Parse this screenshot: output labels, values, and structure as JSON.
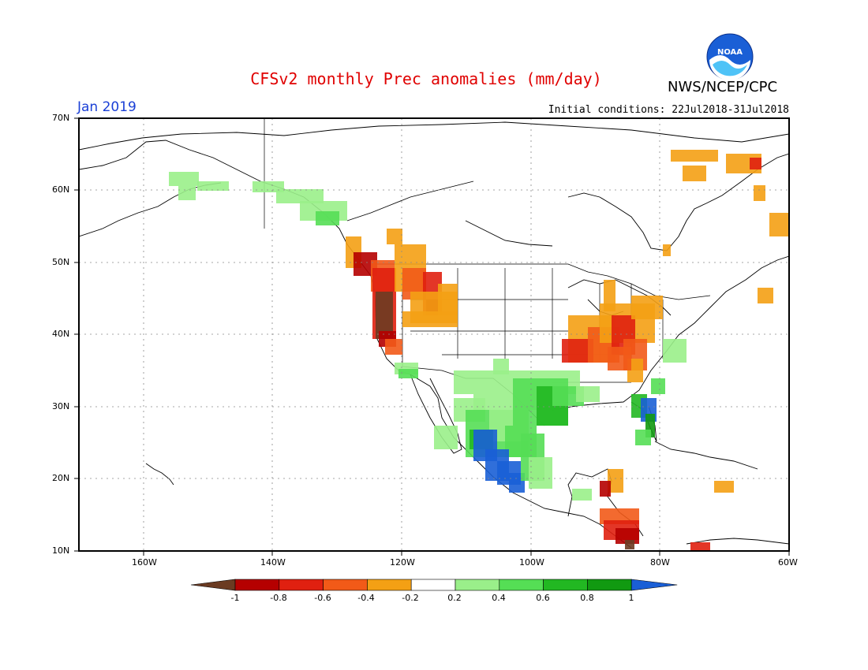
{
  "header": {
    "title": "CFSv2 monthly Prec anomalies (mm/day)",
    "month": "Jan 2019",
    "initial_conditions": "Initial conditions: 22Jul2018-31Jul2018",
    "org": "NWS/NCEP/CPC",
    "logo_text": "NOAA"
  },
  "map": {
    "extent": {
      "lon": [
        -170,
        -60
      ],
      "lat": [
        10,
        70
      ]
    },
    "lat_labels": [
      "70N",
      "60N",
      "50N",
      "40N",
      "30N",
      "20N",
      "10N"
    ],
    "lon_labels": [
      "160W",
      "140W",
      "120W",
      "100W",
      "80W",
      "60W"
    ]
  },
  "colorbar": {
    "labels": [
      "-1",
      "-0.8",
      "-0.6",
      "-0.4",
      "-0.2",
      "0.2",
      "0.4",
      "0.6",
      "0.8",
      "1"
    ],
    "colors": [
      "#6b3b22",
      "#b50000",
      "#e02010",
      "#f25a18",
      "#f4a014",
      "#ffffff",
      "#9aef8a",
      "#55de55",
      "#22b822",
      "#119a11",
      "#1a5fd6"
    ]
  },
  "anomaly_regions": [
    {
      "name": "pacific-nw-coast",
      "level": -1.0
    },
    {
      "name": "northern-rockies",
      "level": -0.4
    },
    {
      "name": "ohio-valley",
      "level": -0.6
    },
    {
      "name": "mexico-pacific-coast",
      "level": 1.0
    },
    {
      "name": "texas-gulf",
      "level": 0.6
    },
    {
      "name": "florida",
      "level": 1.0
    },
    {
      "name": "central-america",
      "level": -0.6
    },
    {
      "name": "alaska-south",
      "level": 0.4
    }
  ]
}
